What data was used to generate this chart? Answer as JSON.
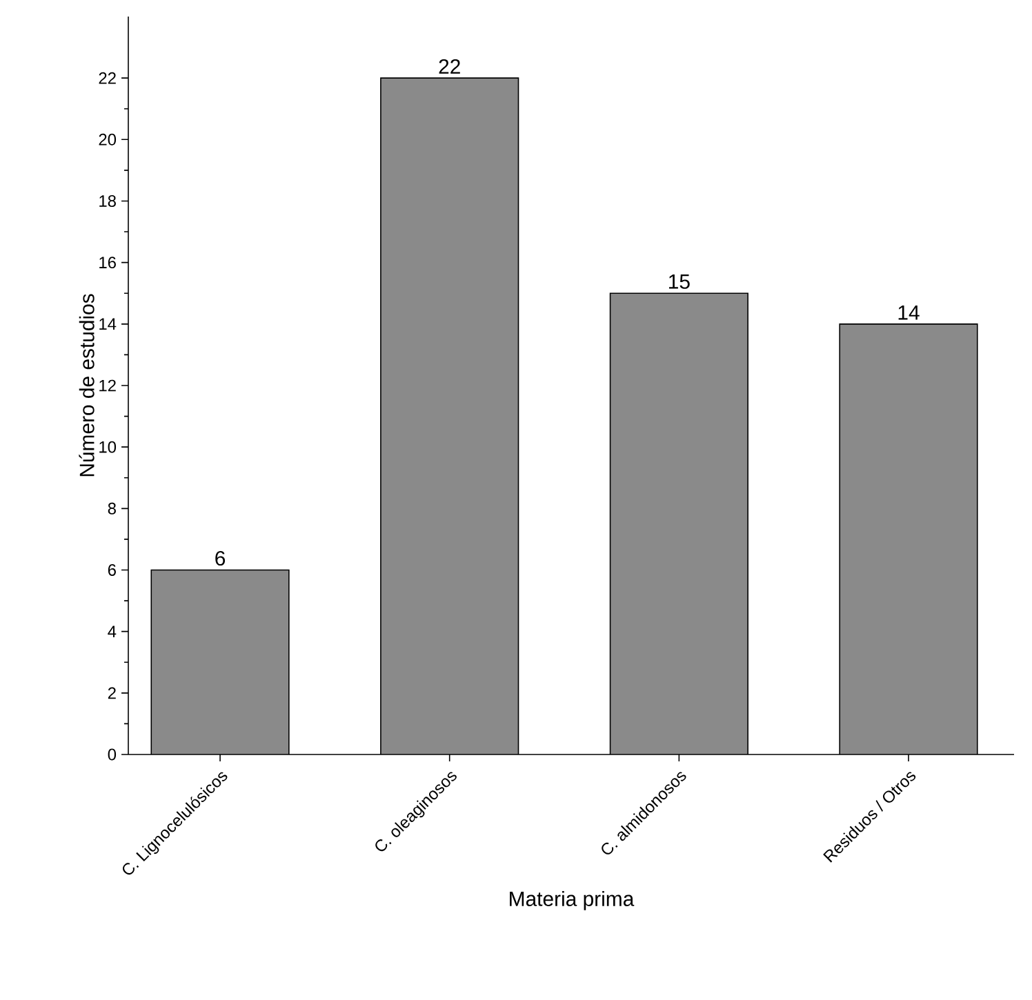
{
  "chart_data": {
    "type": "bar",
    "xlabel": "Materia prima",
    "ylabel": "Número de estudios",
    "categories": [
      "C. Lignocelulósicos",
      "C. oleaginosos",
      "C. almidonosos",
      "Residuos / Otros"
    ],
    "values": [
      6,
      22,
      15,
      14
    ],
    "color": "#8a8a8a",
    "ylim": [
      0,
      24
    ],
    "yticks": [
      0,
      2,
      4,
      6,
      8,
      10,
      12,
      14,
      16,
      18,
      20,
      22
    ],
    "data_labels": true
  }
}
